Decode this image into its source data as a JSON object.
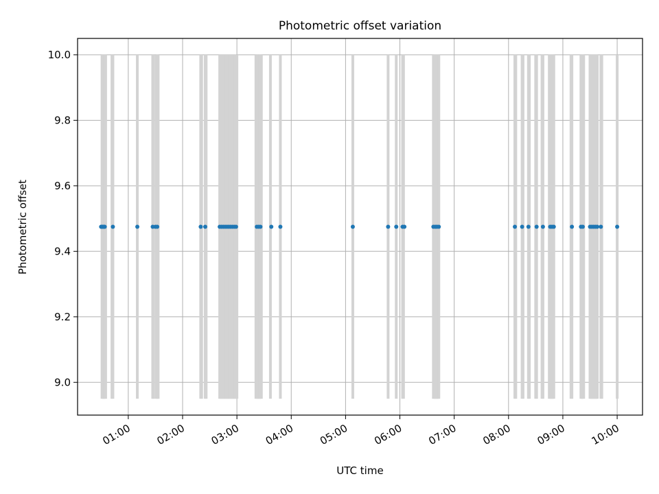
{
  "chart_data": {
    "type": "scatter",
    "title": "Photometric offset variation",
    "xlabel": "UTC time",
    "ylabel": "Photometric offset",
    "grid": true,
    "legend": "none",
    "xlim": [
      "00:04",
      "10:28"
    ],
    "ylim": [
      8.9,
      10.05
    ],
    "x_ticks": [
      "01:00",
      "02:00",
      "03:00",
      "04:00",
      "05:00",
      "06:00",
      "07:00",
      "08:00",
      "09:00",
      "10:00"
    ],
    "y_ticks": [
      "9.0",
      "9.2",
      "9.4",
      "9.6",
      "9.8",
      "10.0"
    ],
    "point_color": "#1f77b4",
    "band_color": "#d3d3d3",
    "bands": {
      "ymin": 8.95,
      "ymax": 10.0,
      "times": [
        "00:31",
        "00:32",
        "00:33",
        "00:34",
        "00:35",
        "00:42",
        "00:43",
        "01:10",
        "01:27",
        "01:28",
        "01:31",
        "01:32",
        "01:33",
        "02:20",
        "02:21",
        "02:25",
        "02:26",
        "02:41",
        "02:42",
        "02:43",
        "02:44",
        "02:45",
        "02:46",
        "02:47",
        "02:48",
        "02:49",
        "02:50",
        "02:51",
        "02:52",
        "02:53",
        "02:54",
        "02:55",
        "02:56",
        "02:57",
        "02:58",
        "02:59",
        "03:00",
        "03:21",
        "03:22",
        "03:23",
        "03:24",
        "03:25",
        "03:26",
        "03:27",
        "03:37",
        "03:48",
        "05:08",
        "05:47",
        "05:56",
        "06:03",
        "06:04",
        "06:37",
        "06:38",
        "06:39",
        "06:40",
        "06:41",
        "06:42",
        "06:43",
        "08:07",
        "08:08",
        "08:15",
        "08:16",
        "08:22",
        "08:23",
        "08:30",
        "08:31",
        "08:37",
        "08:38",
        "08:45",
        "08:46",
        "08:47",
        "08:48",
        "08:49",
        "08:50",
        "09:09",
        "09:10",
        "09:20",
        "09:21",
        "09:22",
        "09:23",
        "09:30",
        "09:31",
        "09:32",
        "09:33",
        "09:34",
        "09:35",
        "09:36",
        "09:37",
        "09:38",
        "09:42",
        "09:43",
        "10:00"
      ]
    },
    "points": {
      "y": 9.475,
      "times": [
        "00:30",
        "00:31",
        "00:32",
        "00:33",
        "00:34",
        "00:43",
        "01:10",
        "01:27",
        "01:30",
        "01:32",
        "02:20",
        "02:25",
        "02:41",
        "02:43",
        "02:45",
        "02:47",
        "02:49",
        "02:51",
        "02:53",
        "02:55",
        "02:57",
        "02:59",
        "03:22",
        "03:24",
        "03:26",
        "03:38",
        "03:48",
        "05:08",
        "05:47",
        "05:56",
        "06:03",
        "06:05",
        "06:37",
        "06:39",
        "06:41",
        "06:43",
        "08:07",
        "08:15",
        "08:22",
        "08:31",
        "08:38",
        "08:46",
        "08:48",
        "08:50",
        "09:10",
        "09:20",
        "09:22",
        "09:30",
        "09:32",
        "09:34",
        "09:36",
        "09:38",
        "09:42",
        "10:00"
      ]
    }
  }
}
